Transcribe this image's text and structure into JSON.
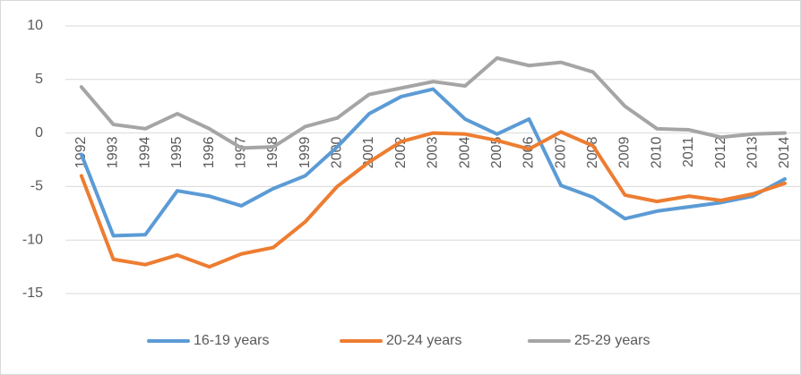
{
  "chart_data": {
    "type": "line",
    "categories": [
      "1992",
      "1993",
      "1994",
      "1995",
      "1996",
      "1997",
      "1998",
      "1999",
      "2000",
      "2001",
      "2002",
      "2003",
      "2004",
      "2005",
      "2006",
      "2007",
      "2008",
      "2009",
      "2010",
      "2011",
      "2012",
      "2013",
      "2014"
    ],
    "series": [
      {
        "name": "16-19 years",
        "color": "#5b9bd5",
        "values": [
          -2.0,
          -9.6,
          -9.5,
          -5.4,
          -5.9,
          -6.8,
          -5.2,
          -4.0,
          -1.3,
          1.8,
          3.4,
          4.1,
          1.3,
          -0.1,
          1.3,
          -4.9,
          -6.0,
          -8.0,
          -7.3,
          -6.9,
          -6.5,
          -5.9,
          -4.3
        ]
      },
      {
        "name": "20-24 years",
        "color": "#ed7d31",
        "values": [
          -4.0,
          -11.8,
          -12.3,
          -11.4,
          -12.5,
          -11.3,
          -10.7,
          -8.3,
          -5.0,
          -2.7,
          -0.8,
          0.0,
          -0.1,
          -0.7,
          -1.5,
          0.1,
          -1.2,
          -5.8,
          -6.4,
          -5.9,
          -6.3,
          -5.7,
          -4.7
        ]
      },
      {
        "name": "25-29 years",
        "color": "#a5a5a5",
        "values": [
          4.3,
          0.8,
          0.4,
          1.8,
          0.4,
          -1.4,
          -1.3,
          0.6,
          1.4,
          3.6,
          4.2,
          4.8,
          4.4,
          7.0,
          6.3,
          6.6,
          5.7,
          2.5,
          0.4,
          0.3,
          -0.4,
          -0.1,
          0.0
        ]
      }
    ],
    "ylim": [
      -15,
      10
    ],
    "yticks": [
      -15,
      -10,
      -5,
      0,
      5,
      10
    ],
    "grid": true,
    "legend": "bottom"
  }
}
